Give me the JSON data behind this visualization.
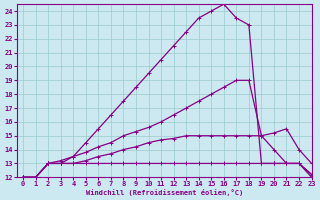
{
  "xlabel": "Windchill (Refroidissement éolien,°C)",
  "background_color": "#cce8f0",
  "grid_color": "#99cccc",
  "line_color": "#880088",
  "xlim": [
    -0.5,
    23
  ],
  "ylim": [
    12,
    24.5
  ],
  "xticks": [
    0,
    1,
    2,
    3,
    4,
    5,
    6,
    7,
    8,
    9,
    10,
    11,
    12,
    13,
    14,
    15,
    16,
    17,
    18,
    19,
    20,
    21,
    22,
    23
  ],
  "yticks": [
    12,
    13,
    14,
    15,
    16,
    17,
    18,
    19,
    20,
    21,
    22,
    23,
    24
  ],
  "line1_x": [
    0,
    1,
    2,
    3,
    4,
    5,
    6,
    7,
    8,
    9,
    10,
    11,
    12,
    13,
    14,
    15,
    16,
    17,
    18,
    19,
    20,
    21,
    22,
    23
  ],
  "line1_y": [
    12.0,
    12.0,
    13.0,
    13.2,
    13.5,
    13.8,
    14.2,
    14.5,
    15.0,
    15.3,
    15.6,
    16.0,
    16.5,
    17.0,
    17.5,
    18.0,
    18.5,
    19.0,
    19.0,
    15.0,
    14.0,
    13.0,
    13.0,
    12.0
  ],
  "line2_x": [
    0,
    1,
    2,
    3,
    4,
    5,
    6,
    7,
    8,
    9,
    10,
    11,
    12,
    13,
    14,
    15,
    16,
    17,
    18,
    19,
    20,
    21,
    22,
    23
  ],
  "line2_y": [
    12.0,
    12.0,
    13.0,
    13.0,
    13.5,
    14.5,
    15.5,
    16.5,
    17.5,
    18.5,
    19.5,
    20.5,
    21.5,
    22.5,
    23.5,
    24.0,
    24.5,
    23.5,
    23.0,
    13.0,
    13.0,
    13.0,
    13.0,
    12.2
  ],
  "line3_x": [
    0,
    1,
    2,
    3,
    4,
    5,
    6,
    7,
    8,
    9,
    10,
    11,
    12,
    13,
    14,
    15,
    16,
    17,
    18,
    19,
    20,
    21,
    22,
    23
  ],
  "line3_y": [
    12.0,
    12.0,
    13.0,
    13.0,
    13.0,
    13.2,
    13.5,
    13.7,
    14.0,
    14.2,
    14.5,
    14.7,
    14.8,
    15.0,
    15.0,
    15.0,
    15.0,
    15.0,
    15.0,
    15.0,
    15.2,
    15.5,
    14.0,
    13.0
  ],
  "line4_x": [
    0,
    1,
    2,
    3,
    4,
    5,
    6,
    7,
    8,
    9,
    10,
    11,
    12,
    13,
    14,
    15,
    16,
    17,
    18,
    19,
    20,
    21,
    22,
    23
  ],
  "line4_y": [
    12.0,
    12.0,
    13.0,
    13.0,
    13.0,
    13.0,
    13.0,
    13.0,
    13.0,
    13.0,
    13.0,
    13.0,
    13.0,
    13.0,
    13.0,
    13.0,
    13.0,
    13.0,
    13.0,
    13.0,
    13.0,
    13.0,
    13.0,
    12.2
  ],
  "marker": "+",
  "markersize": 3,
  "linewidth": 0.9
}
